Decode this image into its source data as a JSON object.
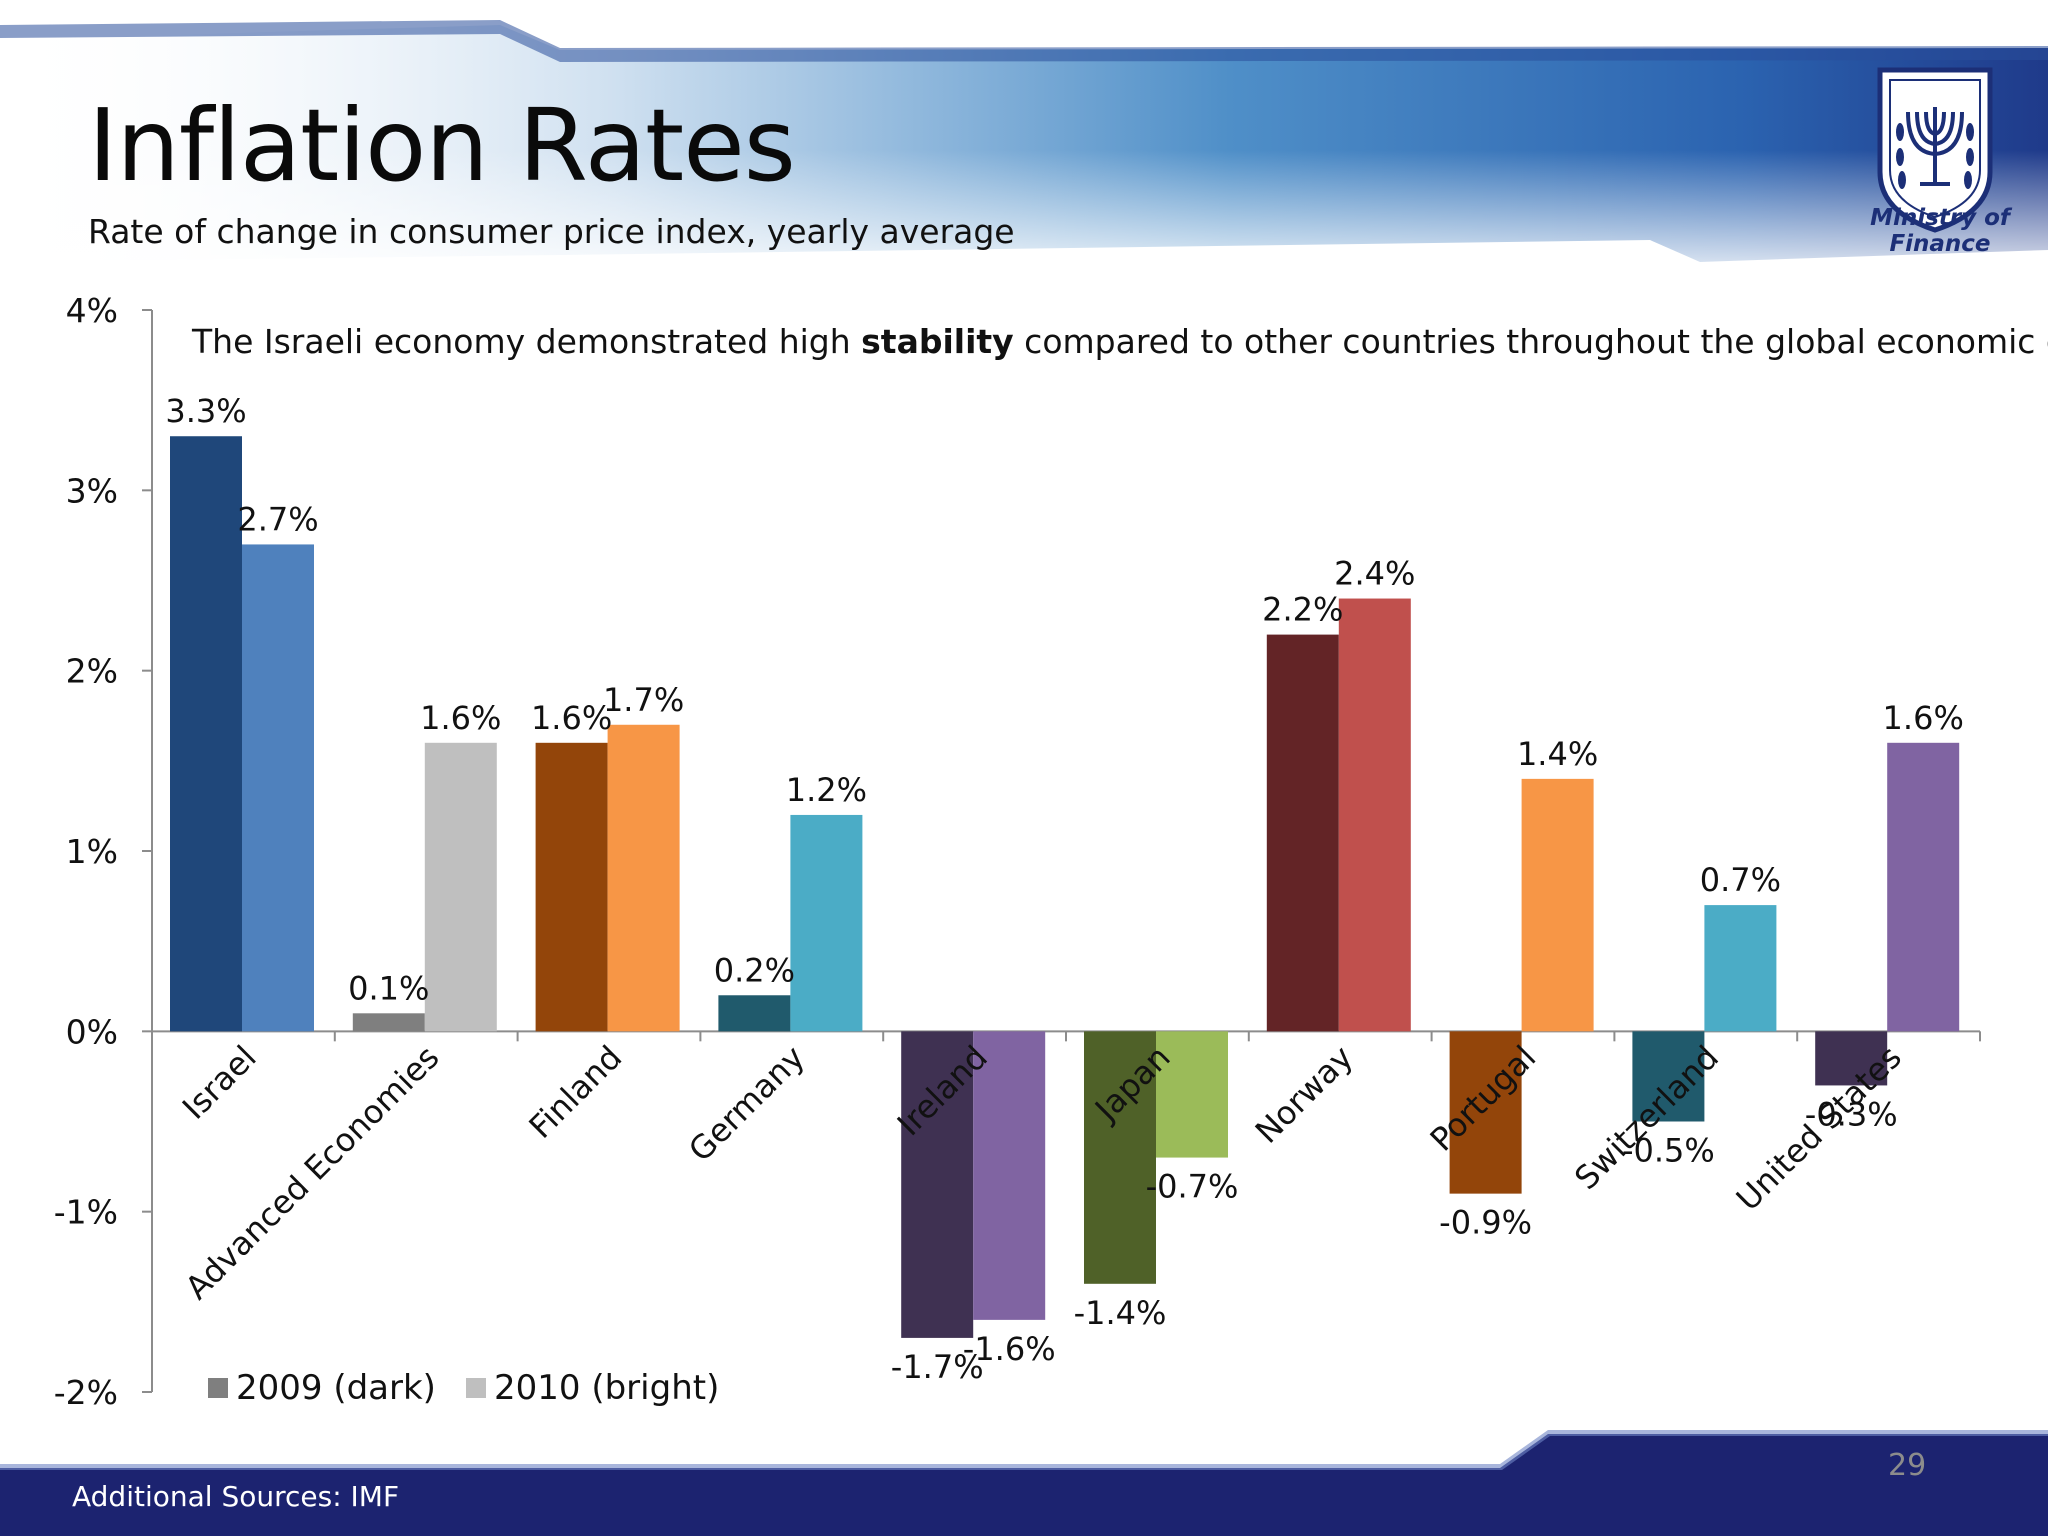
{
  "slide": {
    "title": "Inflation Rates",
    "subtitle": "Rate of change in consumer price index, yearly average",
    "note_before": "The Israeli economy demonstrated high ",
    "note_bold": "stability",
    "note_after": " compared to other countries throughout the global economic crisis.",
    "logo_text": "Ministry of Finance",
    "footer_source": "Additional Sources: IMF",
    "page_number": "29",
    "colors": {
      "header_blue": "#1f3a8a",
      "footer_navy": "#1c2370"
    }
  },
  "chart_data": {
    "type": "bar",
    "ylim": [
      -2,
      4
    ],
    "yticks": [
      "-2%",
      "-1%",
      "0%",
      "1%",
      "2%",
      "3%",
      "4%"
    ],
    "categories": [
      "Israel",
      "Advanced Economies",
      "Finland",
      "Germany",
      "Ireland",
      "Japan",
      "Norway",
      "Portugal",
      "Switzerland",
      "United States"
    ],
    "series": [
      {
        "name": "2009 (dark)",
        "values": [
          3.3,
          0.1,
          1.6,
          0.2,
          -1.7,
          -1.4,
          2.2,
          -0.9,
          -0.5,
          -0.3
        ],
        "labels": [
          "3.3%",
          "0.1%",
          "1.6%",
          "0.2%",
          "-1.7%",
          "-1.4%",
          "2.2%",
          "-0.9%",
          "-0.5%",
          "-0.3%"
        ],
        "colors": [
          "#1f477a",
          "#7f7f7f",
          "#93450a",
          "#205a6c",
          "#3f3152",
          "#4f6128",
          "#632426",
          "#93450a",
          "#205a6c",
          "#3f3152"
        ]
      },
      {
        "name": "2010 (bright)",
        "values": [
          2.7,
          1.6,
          1.7,
          1.2,
          -1.6,
          -0.7,
          2.4,
          1.4,
          0.7,
          1.6
        ],
        "labels": [
          "2.7%",
          "1.6%",
          "1.7%",
          "1.2%",
          "-1.6%",
          "-0.7%",
          "2.4%",
          "1.4%",
          "0.7%",
          "1.6%"
        ],
        "colors": [
          "#4f81bd",
          "#bfbfbf",
          "#f79646",
          "#4bacc6",
          "#8064a2",
          "#9bbb59",
          "#c0504d",
          "#f79646",
          "#4bacc6",
          "#8064a2"
        ]
      }
    ],
    "legend": [
      {
        "label": "2009 (dark)",
        "color": "#7f7f7f"
      },
      {
        "label": "2010 (bright)",
        "color": "#bfbfbf"
      }
    ],
    "legend_position": "bottom-left"
  }
}
